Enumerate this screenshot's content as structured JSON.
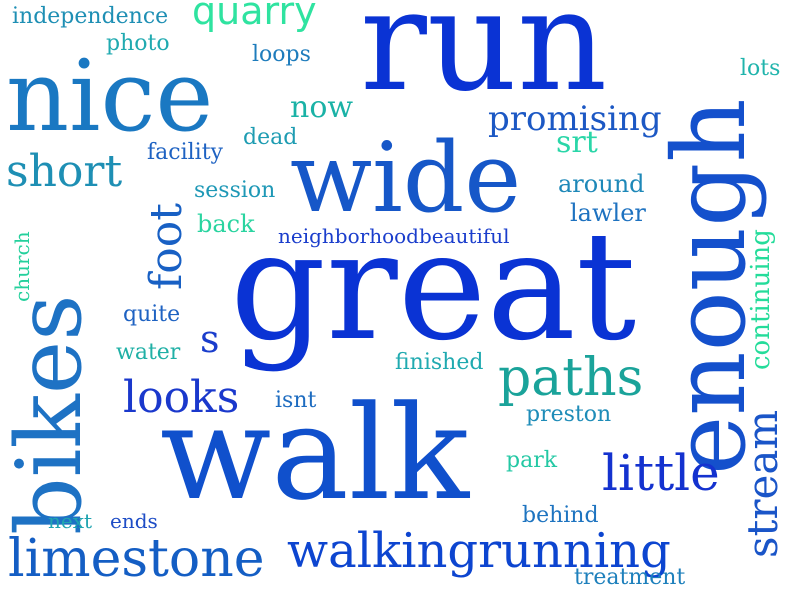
{
  "words": [
    {
      "text": "run",
      "color": "#0a33d4"
    },
    {
      "text": "great",
      "color": "#0a33d4"
    },
    {
      "text": "walk",
      "color": "#1050cc"
    },
    {
      "text": "nice",
      "color": "#1a78c2"
    },
    {
      "text": "wide",
      "color": "#1657c8"
    },
    {
      "text": "enough",
      "color": "#1450cc"
    },
    {
      "text": "bikes",
      "color": "#1e72c4"
    },
    {
      "text": "paths",
      "color": "#1aa39a"
    },
    {
      "text": "limestone",
      "color": "#145ec4"
    },
    {
      "text": "walkingrunning",
      "color": "#0d45d0"
    },
    {
      "text": "little",
      "color": "#1432cf"
    },
    {
      "text": "quarry",
      "color": "#2fe3a0"
    },
    {
      "text": "short",
      "color": "#1e8fb4"
    },
    {
      "text": "foot",
      "color": "#1860c4"
    },
    {
      "text": "looks",
      "color": "#1a38cc"
    },
    {
      "text": "stream",
      "color": "#1a55c8"
    },
    {
      "text": "promising",
      "color": "#1c58c4"
    },
    {
      "text": "s",
      "color": "#1a3dcc"
    },
    {
      "text": "srt",
      "color": "#2ad6a8"
    },
    {
      "text": "now",
      "color": "#1ab2a6"
    },
    {
      "text": "continuing",
      "color": "#24dc9a"
    },
    {
      "text": "independence",
      "color": "#1e8fb4"
    },
    {
      "text": "photo",
      "color": "#20aab0"
    },
    {
      "text": "loops",
      "color": "#1e7cbc"
    },
    {
      "text": "lots",
      "color": "#20b4ac"
    },
    {
      "text": "dead",
      "color": "#1e9cb2"
    },
    {
      "text": "facility",
      "color": "#1e62c2"
    },
    {
      "text": "session",
      "color": "#1e98b6"
    },
    {
      "text": "around",
      "color": "#1e88b8"
    },
    {
      "text": "back",
      "color": "#2ad4a0"
    },
    {
      "text": "lawler",
      "color": "#1e72c0"
    },
    {
      "text": "neighborhoodbeautiful",
      "color": "#1a3dcc"
    },
    {
      "text": "church",
      "color": "#24d09c"
    },
    {
      "text": "quite",
      "color": "#1e62c2"
    },
    {
      "text": "water",
      "color": "#20b0a6"
    },
    {
      "text": "finished",
      "color": "#20aab0"
    },
    {
      "text": "isnt",
      "color": "#1e6cc0"
    },
    {
      "text": "preston",
      "color": "#1e8cb8"
    },
    {
      "text": "park",
      "color": "#24c8a4"
    },
    {
      "text": "next",
      "color": "#20a4b0"
    },
    {
      "text": "ends",
      "color": "#1e4dc6"
    },
    {
      "text": "behind",
      "color": "#1e74c0"
    },
    {
      "text": "treatment",
      "color": "#1e80bc"
    }
  ]
}
